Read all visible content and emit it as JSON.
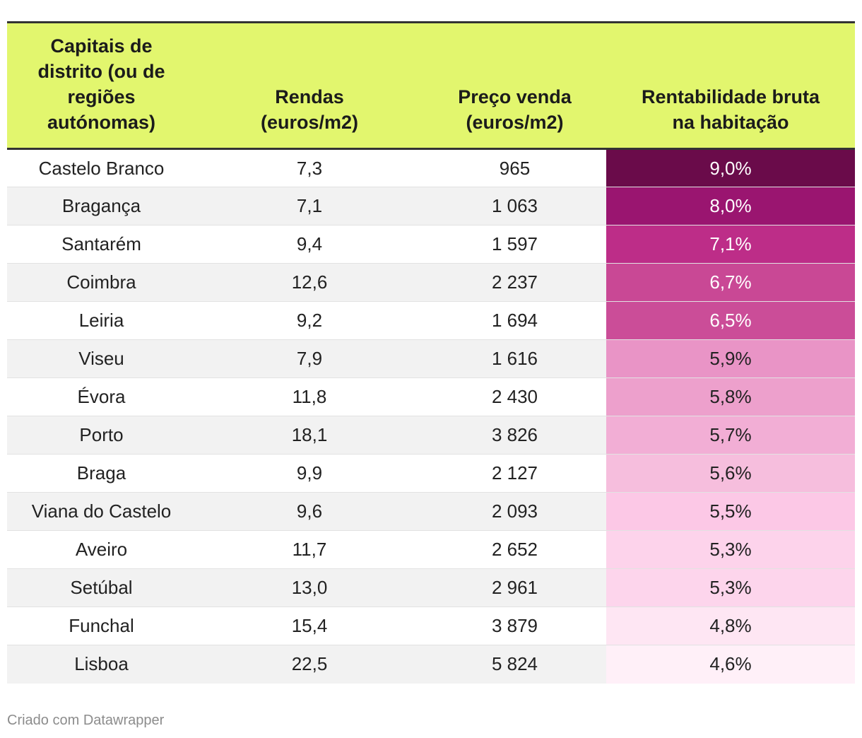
{
  "chart_data": {
    "type": "table",
    "columns": [
      "Capitais de distrito (ou de regiões autónomas)",
      "Rendas (euros/m2)",
      "Preço venda (euros/m2)",
      "Rentabilidade bruta na habitação"
    ],
    "rows": [
      {
        "city": "Castelo Branco",
        "rent": "7,3",
        "price": "965",
        "yield": "9,0%",
        "yield_value": 9.0,
        "color": "#6a0b4a"
      },
      {
        "city": "Bragança",
        "rent": "7,1",
        "price": "1 063",
        "yield": "8,0%",
        "yield_value": 8.0,
        "color": "#9a1570"
      },
      {
        "city": "Santarém",
        "rent": "9,4",
        "price": "1 597",
        "yield": "7,1%",
        "yield_value": 7.1,
        "color": "#bd2d88"
      },
      {
        "city": "Coimbra",
        "rent": "12,6",
        "price": "2 237",
        "yield": "6,7%",
        "yield_value": 6.7,
        "color": "#c94895"
      },
      {
        "city": "Leiria",
        "rent": "9,2",
        "price": "1 694",
        "yield": "6,5%",
        "yield_value": 6.5,
        "color": "#cb4d98"
      },
      {
        "city": "Viseu",
        "rent": "7,9",
        "price": "1 616",
        "yield": "5,9%",
        "yield_value": 5.9,
        "color": "#e994c6"
      },
      {
        "city": "Évora",
        "rent": "11,8",
        "price": "2 430",
        "yield": "5,8%",
        "yield_value": 5.8,
        "color": "#eda0cc"
      },
      {
        "city": "Porto",
        "rent": "18,1",
        "price": "3 826",
        "yield": "5,7%",
        "yield_value": 5.7,
        "color": "#f2aed5"
      },
      {
        "city": "Braga",
        "rent": "9,9",
        "price": "2 127",
        "yield": "5,6%",
        "yield_value": 5.6,
        "color": "#f6bedd"
      },
      {
        "city": "Viana do Castelo",
        "rent": "9,6",
        "price": "2 093",
        "yield": "5,5%",
        "yield_value": 5.5,
        "color": "#fcc8e6"
      },
      {
        "city": "Aveiro",
        "rent": "11,7",
        "price": "2 652",
        "yield": "5,3%",
        "yield_value": 5.3,
        "color": "#fdd3eb"
      },
      {
        "city": "Setúbal",
        "rent": "13,0",
        "price": "2 961",
        "yield": "5,3%",
        "yield_value": 5.3,
        "color": "#fdd5ec"
      },
      {
        "city": "Funchal",
        "rent": "15,4",
        "price": "3 879",
        "yield": "4,8%",
        "yield_value": 4.8,
        "color": "#fee6f3"
      },
      {
        "city": "Lisboa",
        "rent": "22,5",
        "price": "5 824",
        "yield": "4,6%",
        "yield_value": 4.6,
        "color": "#fff0f8"
      }
    ]
  },
  "header": {
    "col1_lines": [
      "Capitais",
      "de",
      "distrito (ou de",
      "regiões",
      "autónomas)"
    ],
    "col2_lines": [
      "Rendas",
      "(euros/m2)"
    ],
    "col3_lines": [
      "Preço venda",
      "(euros/m2)"
    ],
    "col4_lines": [
      "Rentabilidade bruta",
      "na habitação"
    ]
  },
  "colors": {
    "header_bg": "#e2f66e",
    "stripe": "#f2f2f2"
  },
  "footer": {
    "credit": "Criado com Datawrapper"
  }
}
